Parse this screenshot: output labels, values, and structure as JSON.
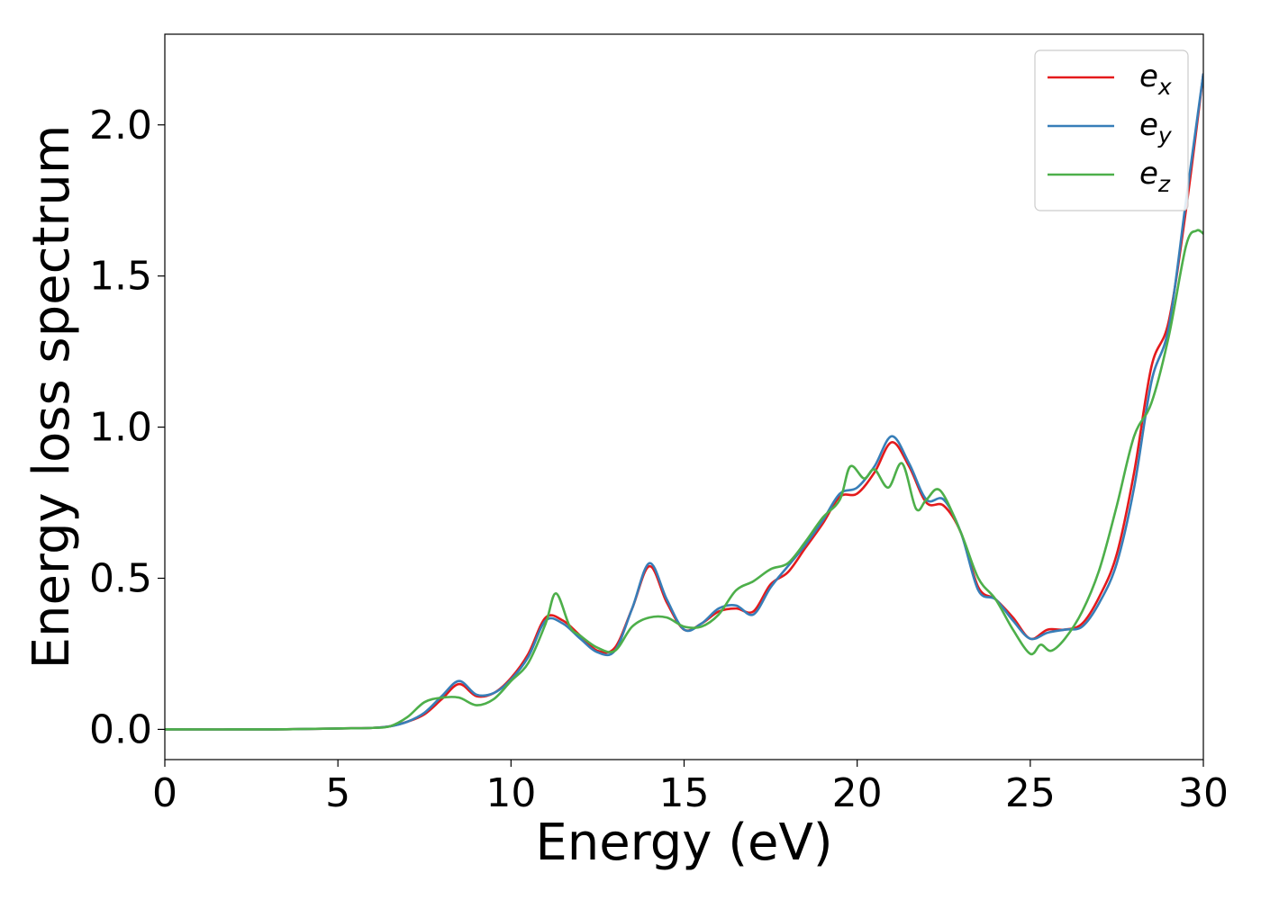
{
  "chart_data": {
    "type": "line",
    "title": "",
    "xlabel": "Energy (eV)",
    "ylabel": "Energy loss spectrum",
    "xlim": [
      0,
      30
    ],
    "ylim": [
      -0.1,
      2.3
    ],
    "xticks": [
      0,
      5,
      10,
      15,
      20,
      25,
      30
    ],
    "yticks": [
      0.0,
      0.5,
      1.0,
      1.5,
      2.0
    ],
    "xtick_labels": [
      "0",
      "5",
      "10",
      "15",
      "20",
      "25",
      "30"
    ],
    "ytick_labels": [
      "0.0",
      "0.5",
      "1.0",
      "1.5",
      "2.0"
    ],
    "grid": false,
    "legend_position": "top-right",
    "series": [
      {
        "name": "e",
        "subscript": "x",
        "color": "#e41a1c",
        "x": [
          0,
          3,
          5,
          6,
          6.5,
          7,
          7.5,
          8,
          8.5,
          9,
          9.5,
          10,
          10.5,
          11,
          11.5,
          12,
          12.5,
          13,
          13.5,
          14,
          14.5,
          15,
          15.5,
          16,
          16.5,
          17,
          17.5,
          18,
          18.5,
          19,
          19.5,
          20,
          20.5,
          21,
          21.5,
          22,
          22.5,
          23,
          23.5,
          24,
          24.5,
          25,
          25.5,
          26,
          26.5,
          27,
          27.5,
          28,
          28.5,
          29,
          29.5,
          30
        ],
        "y": [
          0,
          0,
          0.003,
          0.005,
          0.01,
          0.025,
          0.05,
          0.1,
          0.15,
          0.11,
          0.12,
          0.17,
          0.25,
          0.37,
          0.36,
          0.31,
          0.26,
          0.27,
          0.4,
          0.54,
          0.42,
          0.33,
          0.35,
          0.39,
          0.4,
          0.39,
          0.48,
          0.52,
          0.6,
          0.68,
          0.77,
          0.78,
          0.85,
          0.95,
          0.87,
          0.75,
          0.74,
          0.65,
          0.47,
          0.43,
          0.37,
          0.3,
          0.33,
          0.33,
          0.35,
          0.44,
          0.58,
          0.85,
          1.2,
          1.35,
          1.72,
          2.17
        ]
      },
      {
        "name": "e",
        "subscript": "y",
        "color": "#377eb8",
        "x": [
          0,
          3,
          5,
          6,
          6.5,
          7,
          7.5,
          8,
          8.5,
          9,
          9.5,
          10,
          10.5,
          11,
          11.5,
          12,
          12.5,
          13,
          13.5,
          14,
          14.5,
          15,
          15.5,
          16,
          16.5,
          17,
          17.5,
          18,
          18.5,
          19,
          19.5,
          20,
          20.5,
          21,
          21.5,
          22,
          22.5,
          23,
          23.5,
          24,
          24.5,
          25,
          25.5,
          26,
          26.5,
          27,
          27.5,
          28,
          28.5,
          29,
          29.5,
          30
        ],
        "y": [
          0,
          0,
          0.003,
          0.005,
          0.01,
          0.025,
          0.055,
          0.11,
          0.16,
          0.115,
          0.12,
          0.165,
          0.24,
          0.36,
          0.35,
          0.3,
          0.255,
          0.26,
          0.4,
          0.55,
          0.43,
          0.33,
          0.35,
          0.4,
          0.41,
          0.38,
          0.47,
          0.54,
          0.61,
          0.69,
          0.78,
          0.8,
          0.87,
          0.97,
          0.88,
          0.76,
          0.76,
          0.65,
          0.46,
          0.43,
          0.36,
          0.3,
          0.32,
          0.33,
          0.34,
          0.42,
          0.55,
          0.8,
          1.15,
          1.33,
          1.75,
          2.17
        ]
      },
      {
        "name": "e",
        "subscript": "z",
        "color": "#4daf4a",
        "x": [
          0,
          3,
          5,
          6,
          6.5,
          7,
          7.5,
          8,
          8.5,
          9,
          9.5,
          10,
          10.5,
          11,
          11.3,
          11.7,
          12,
          12.5,
          13,
          13.5,
          14,
          14.5,
          15,
          15.5,
          16,
          16.5,
          17,
          17.5,
          18,
          18.5,
          19,
          19.5,
          19.8,
          20.2,
          20.5,
          20.9,
          21.3,
          21.7,
          22,
          22.4,
          23,
          23.5,
          24,
          24.5,
          25,
          25.3,
          25.6,
          26,
          26.5,
          27,
          27.5,
          28,
          28.5,
          29,
          29.5,
          29.8,
          30
        ],
        "y": [
          0,
          0,
          0.003,
          0.005,
          0.01,
          0.04,
          0.09,
          0.105,
          0.105,
          0.08,
          0.1,
          0.16,
          0.22,
          0.35,
          0.45,
          0.34,
          0.31,
          0.27,
          0.26,
          0.34,
          0.37,
          0.37,
          0.34,
          0.34,
          0.38,
          0.46,
          0.49,
          0.53,
          0.55,
          0.62,
          0.7,
          0.76,
          0.87,
          0.83,
          0.86,
          0.8,
          0.88,
          0.73,
          0.76,
          0.79,
          0.65,
          0.5,
          0.43,
          0.33,
          0.25,
          0.28,
          0.26,
          0.3,
          0.39,
          0.53,
          0.74,
          0.97,
          1.08,
          1.3,
          1.6,
          1.65,
          1.64
        ]
      }
    ]
  }
}
